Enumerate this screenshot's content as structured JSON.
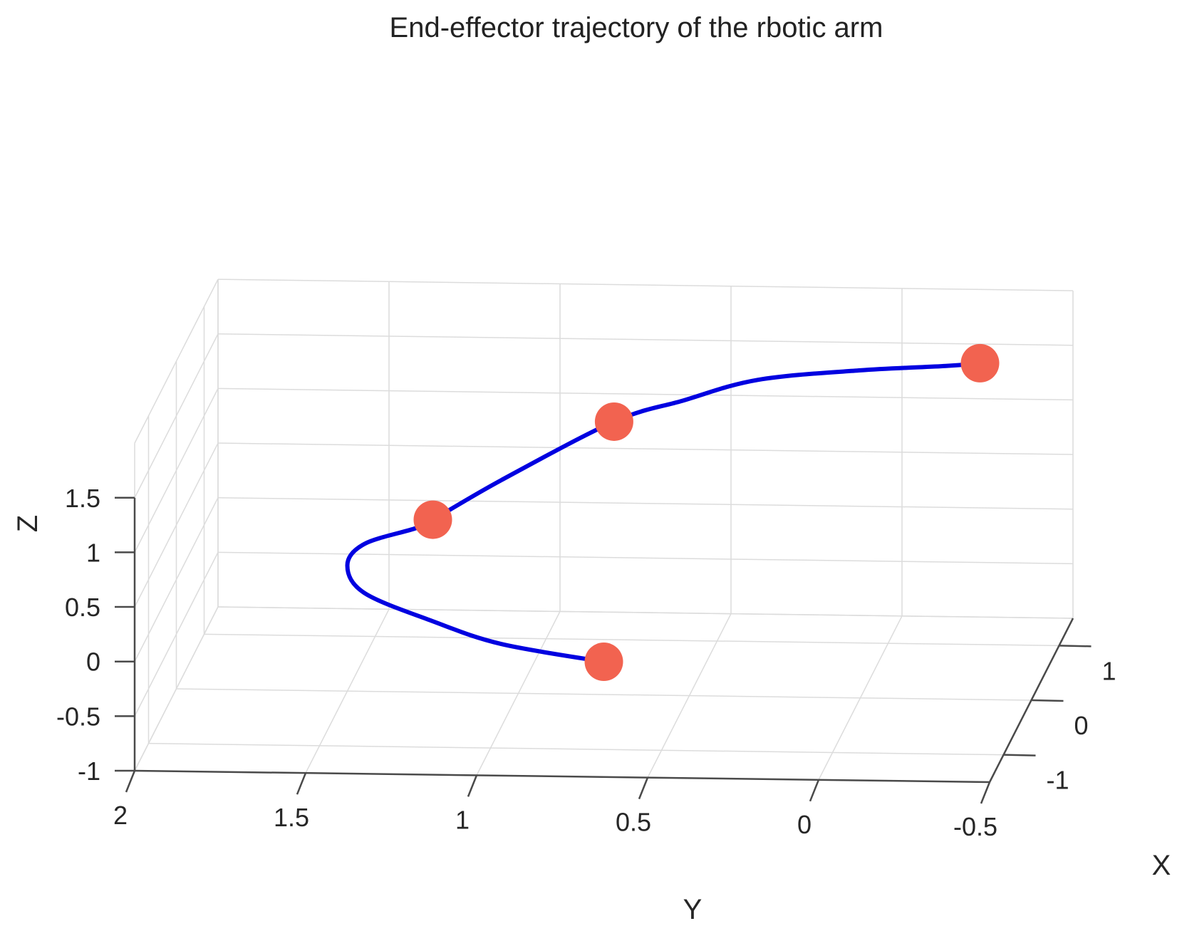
{
  "chart_data": {
    "type": "line3d",
    "title": "End-effector trajectory of the rbotic arm",
    "xlabel": "X",
    "ylabel": "Y",
    "zlabel": "Z",
    "x_ticks": [
      "-1",
      "0",
      "1"
    ],
    "y_ticks": [
      "2",
      "1.5",
      "1",
      "0.5",
      "0",
      "-0.5"
    ],
    "z_ticks": [
      "1.5",
      "1",
      "0.5",
      "0",
      "-0.5",
      "-1"
    ],
    "xlim": [
      -1.5,
      1.5
    ],
    "ylim": [
      -0.5,
      2
    ],
    "zlim": [
      -1,
      2
    ],
    "grid": true,
    "line_color": "#0000e0",
    "marker_color": "#f26350",
    "trajectory": {
      "y": [
        0.75,
        1.05,
        1.25,
        1.45,
        1.5,
        1.45,
        1.3,
        1.25,
        1.05,
        0.72,
        0.52,
        0.3,
        0.0,
        -0.25,
        -0.35
      ],
      "z": [
        -0.7,
        -0.55,
        -0.35,
        -0.1,
        0.15,
        0.35,
        0.5,
        0.58,
        0.95,
        1.5,
        1.7,
        1.9,
        2.0,
        2.05,
        2.08
      ]
    },
    "waypoints": [
      {
        "y": 0.75,
        "z": -0.7
      },
      {
        "y": 1.25,
        "z": 0.58
      },
      {
        "y": 0.72,
        "z": 1.5
      },
      {
        "y": -0.35,
        "z": 2.08
      }
    ]
  }
}
